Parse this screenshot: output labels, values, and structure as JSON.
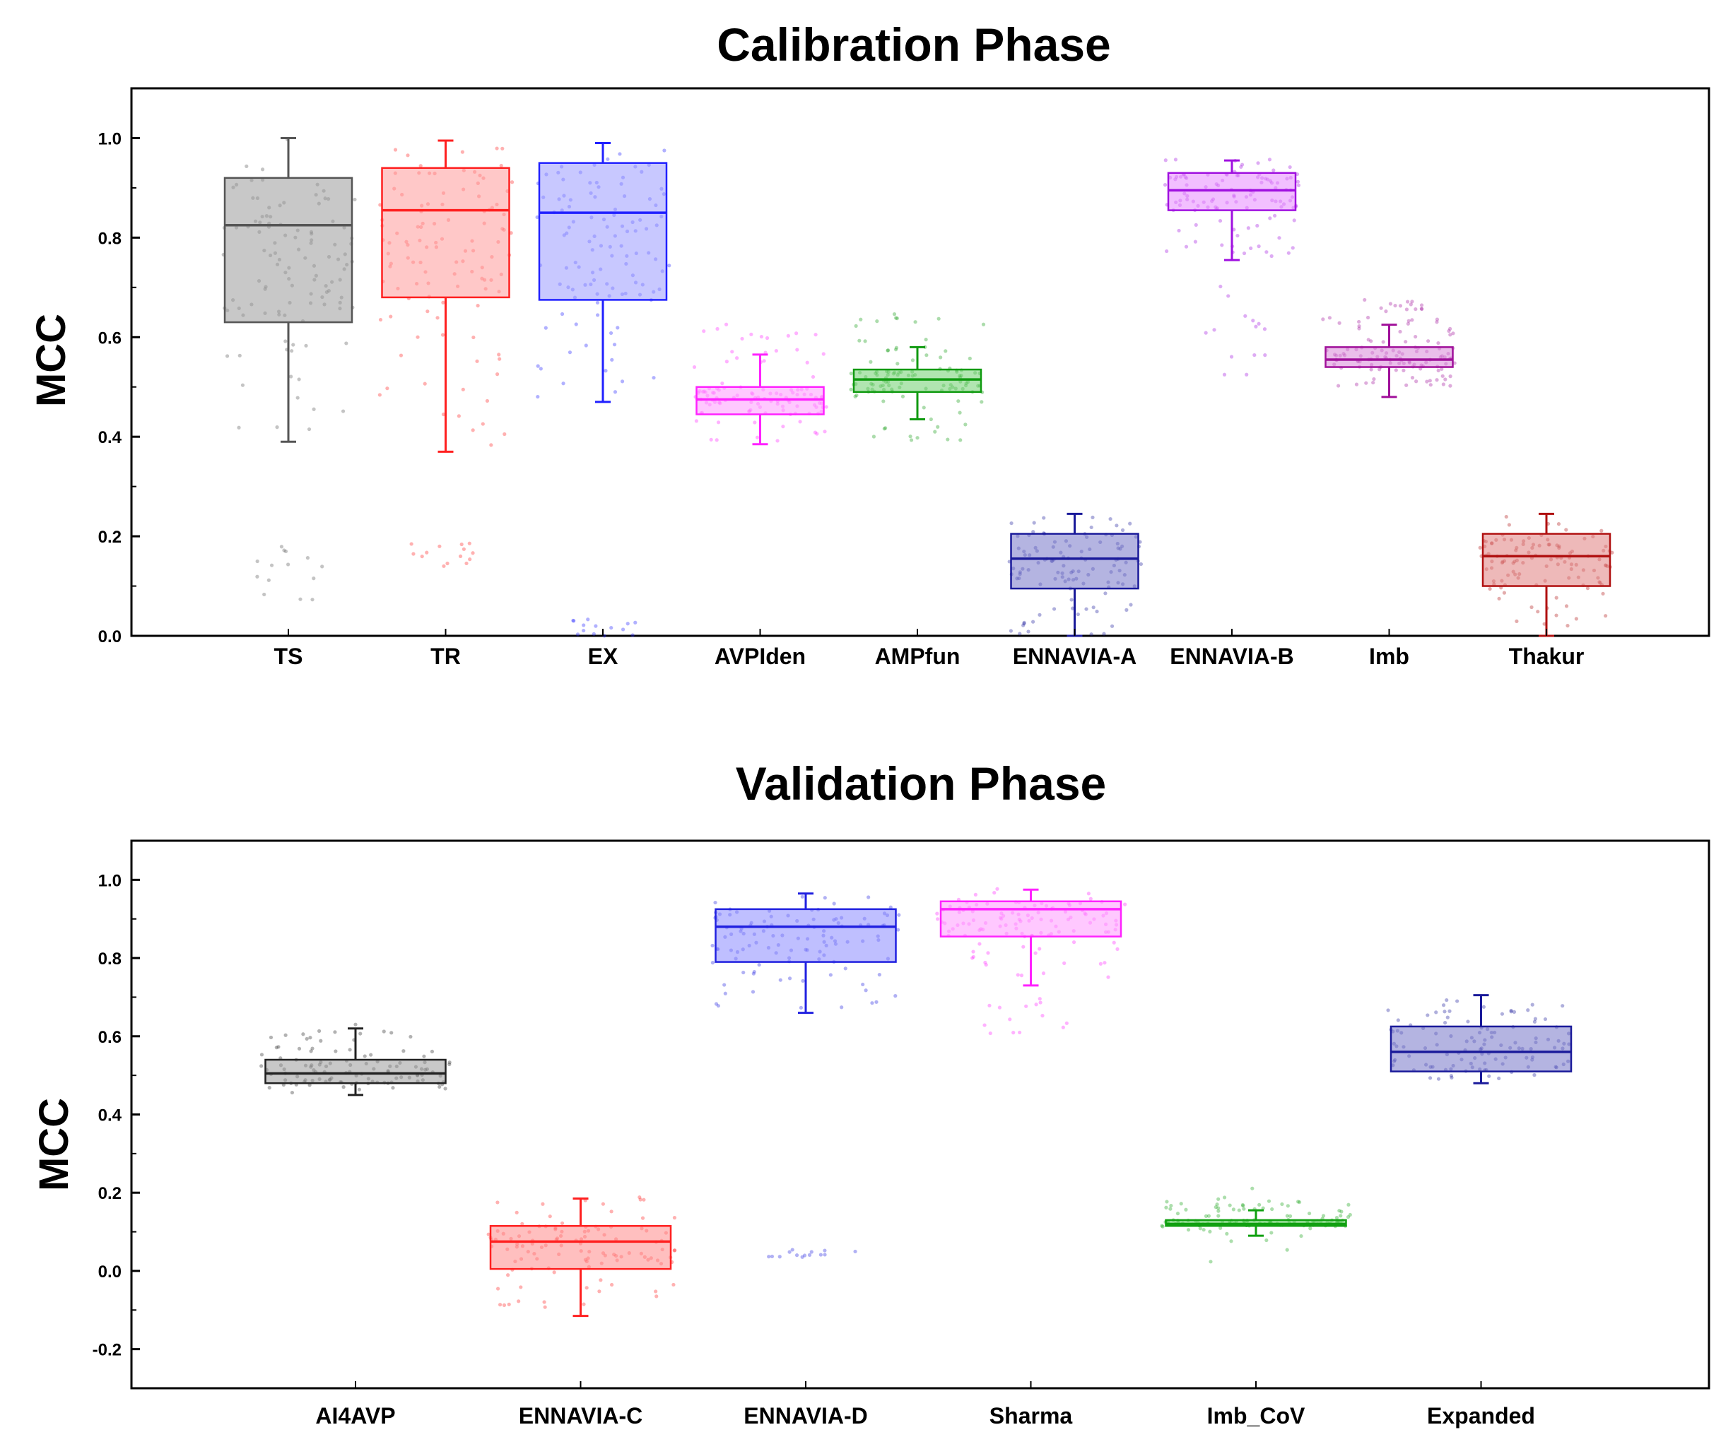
{
  "chart_data": [
    {
      "type": "box",
      "title": "Calibration Phase",
      "ylabel": "MCC",
      "xlabel": "",
      "ylim": [
        0.0,
        1.1
      ],
      "yticks": [
        "0.0",
        "0.2",
        "0.4",
        "0.6",
        "0.8",
        "1.0"
      ],
      "categories": [
        "TS",
        "TR",
        "EX",
        "AVPIden",
        "AMPfun",
        "ENNAVIA-A",
        "ENNAVIA-B",
        "Imb",
        "Thakur"
      ],
      "series": [
        {
          "name": "TS",
          "color": "#555555",
          "fill": "#9a9a9a",
          "whisker_low": 0.39,
          "q1": 0.63,
          "median": 0.825,
          "q3": 0.92,
          "whisker_high": 1.0,
          "outliers": [
            0.07,
            0.18
          ],
          "spread": [
            0.4,
            1.0
          ]
        },
        {
          "name": "TR",
          "color": "#ff2020",
          "fill": "#ff9a9a",
          "whisker_low": 0.37,
          "q1": 0.68,
          "median": 0.855,
          "q3": 0.94,
          "whisker_high": 0.995,
          "outliers": [
            0.14,
            0.19
          ],
          "spread": [
            0.38,
            1.0
          ]
        },
        {
          "name": "EX",
          "color": "#2020ff",
          "fill": "#9a9aff",
          "whisker_low": 0.47,
          "q1": 0.675,
          "median": 0.85,
          "q3": 0.95,
          "whisker_high": 0.99,
          "outliers": [
            0.0,
            0.045
          ],
          "spread": [
            0.48,
            0.99
          ]
        },
        {
          "name": "AVPIden",
          "color": "#ff22ff",
          "fill": "#ff9aff",
          "whisker_low": 0.385,
          "q1": 0.445,
          "median": 0.475,
          "q3": 0.5,
          "whisker_high": 0.565,
          "outliers": [],
          "spread": [
            0.39,
            0.63
          ]
        },
        {
          "name": "AMPfun",
          "color": "#109a10",
          "fill": "#6fcf6f",
          "whisker_low": 0.435,
          "q1": 0.49,
          "median": 0.515,
          "q3": 0.535,
          "whisker_high": 0.58,
          "outliers": [],
          "spread": [
            0.39,
            0.65
          ]
        },
        {
          "name": "ENNAVIA-A",
          "color": "#1a1a9a",
          "fill": "#7777c8",
          "whisker_low": 0.0,
          "q1": 0.095,
          "median": 0.155,
          "q3": 0.205,
          "whisker_high": 0.245,
          "outliers": [],
          "spread": [
            0.0,
            0.24
          ]
        },
        {
          "name": "ENNAVIA-B",
          "color": "#a010e0",
          "fill": "#e88aff",
          "whisker_low": 0.755,
          "q1": 0.855,
          "median": 0.895,
          "q3": 0.93,
          "whisker_high": 0.955,
          "outliers": [
            0.51,
            0.72
          ],
          "spread": [
            0.76,
            0.96
          ]
        },
        {
          "name": "Imb",
          "color": "#a0109a",
          "fill": "#d888d8",
          "whisker_low": 0.48,
          "q1": 0.54,
          "median": 0.555,
          "q3": 0.58,
          "whisker_high": 0.625,
          "outliers": [
            0.65,
            0.675
          ],
          "spread": [
            0.5,
            0.64
          ]
        },
        {
          "name": "Thakur",
          "color": "#b01010",
          "fill": "#e08080",
          "whisker_low": 0.0,
          "q1": 0.1,
          "median": 0.16,
          "q3": 0.205,
          "whisker_high": 0.245,
          "outliers": [],
          "spread": [
            0.02,
            0.24
          ]
        }
      ]
    },
    {
      "type": "box",
      "title": "Validation Phase",
      "ylabel": "MCC",
      "xlabel": "",
      "ylim": [
        -0.3,
        1.1
      ],
      "yticks": [
        "-0.2",
        "0.0",
        "0.2",
        "0.4",
        "0.6",
        "0.8",
        "1.0"
      ],
      "categories": [
        "AI4AVP",
        "ENNAVIA-C",
        "ENNAVIA-D",
        "Sharma",
        "Imb_CoV",
        "Expanded"
      ],
      "series": [
        {
          "name": "AI4AVP",
          "color": "#222222",
          "fill": "#9a9a9a",
          "whisker_low": 0.45,
          "q1": 0.48,
          "median": 0.505,
          "q3": 0.54,
          "whisker_high": 0.62,
          "outliers": [
            0.63
          ],
          "spread": [
            0.45,
            0.62
          ]
        },
        {
          "name": "ENNAVIA-C",
          "color": "#ff2020",
          "fill": "#ff8a8a",
          "whisker_low": -0.115,
          "q1": 0.005,
          "median": 0.075,
          "q3": 0.115,
          "whisker_high": 0.185,
          "outliers": [],
          "spread": [
            -0.1,
            0.19
          ]
        },
        {
          "name": "ENNAVIA-D",
          "color": "#2020e0",
          "fill": "#8a8aff",
          "whisker_low": 0.66,
          "q1": 0.79,
          "median": 0.88,
          "q3": 0.925,
          "whisker_high": 0.965,
          "outliers": [
            0.035,
            0.055
          ],
          "spread": [
            0.67,
            0.97
          ]
        },
        {
          "name": "Sharma",
          "color": "#ff22ff",
          "fill": "#ff9aff",
          "whisker_low": 0.73,
          "q1": 0.855,
          "median": 0.925,
          "q3": 0.945,
          "whisker_high": 0.975,
          "outliers": [
            0.6,
            0.7
          ],
          "spread": [
            0.74,
            0.98
          ]
        },
        {
          "name": "Imb_CoV",
          "color": "#10a010",
          "fill": "#4fc84f",
          "whisker_low": 0.09,
          "q1": 0.115,
          "median": 0.12,
          "q3": 0.13,
          "whisker_high": 0.155,
          "outliers": [
            0.02,
            0.215
          ],
          "spread": [
            0.1,
            0.18
          ]
        },
        {
          "name": "Expanded",
          "color": "#1a1a9a",
          "fill": "#7777c8",
          "whisker_low": 0.48,
          "q1": 0.51,
          "median": 0.56,
          "q3": 0.625,
          "whisker_high": 0.705,
          "outliers": [],
          "spread": [
            0.49,
            0.7
          ]
        }
      ]
    }
  ]
}
